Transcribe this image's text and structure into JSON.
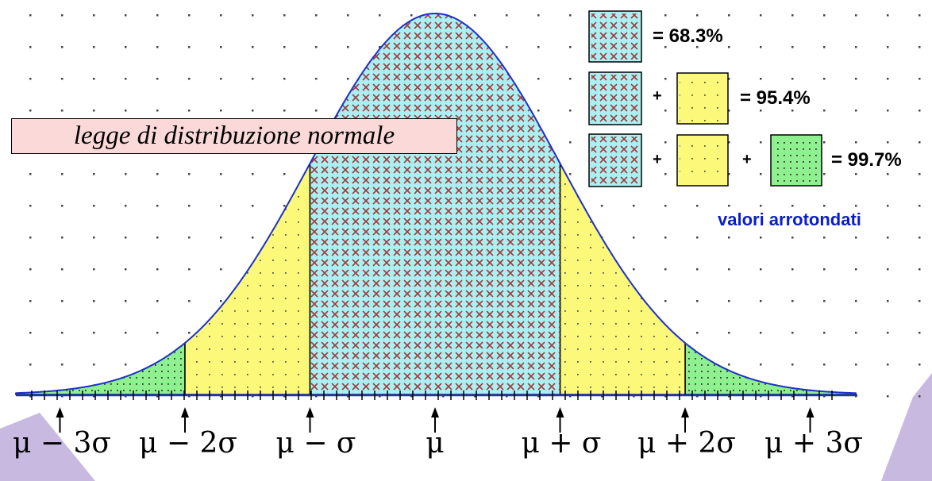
{
  "diagram": {
    "title": "legge di distribuzione normale",
    "note": "valori arrotondati",
    "axis_labels": [
      "μ − 3σ",
      "μ − 2σ",
      "μ − σ",
      "μ",
      "μ + σ",
      "μ + 2σ",
      "μ + 3σ"
    ]
  },
  "legend": {
    "row1": {
      "value": "= 68.3%"
    },
    "row2": {
      "plus": "+",
      "value": "= 95.4%"
    },
    "row3": {
      "plus1": "+",
      "plus2": "+",
      "value": "= 99.7%"
    }
  },
  "colors": {
    "band_1sigma": "#aaf0f2",
    "band_2sigma": "#fbf87a",
    "band_3sigma": "#8ef08e",
    "cross_pattern": "#a03c3c",
    "curve": "#1e32c8",
    "title_bg": "#fcd9d9",
    "note_text": "#0a1ec8"
  },
  "icons": {
    "cross": "cross-hatch-pattern",
    "dots": "dot-pattern",
    "arrow": "up-arrow-icon"
  }
}
